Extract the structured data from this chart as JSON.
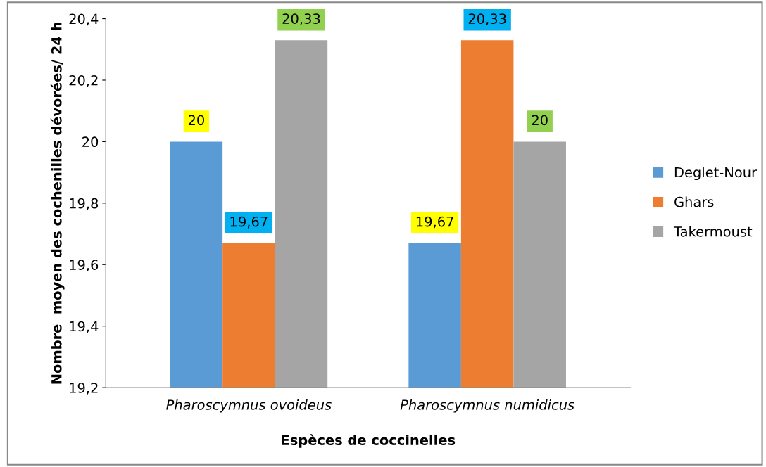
{
  "chart_data": {
    "type": "bar",
    "xlabel": "Espèces de coccinelles",
    "ylabel": "Nombre  moyen des cochenilles dévorées/ 24 h",
    "categories": [
      "Pharoscymnus ovoideus",
      "Pharoscymnus numidicus"
    ],
    "series": [
      {
        "name": "Deglet-Nour",
        "color": "#5b9bd5",
        "values": [
          20,
          19.67
        ],
        "value_labels": [
          "20",
          "19,67"
        ]
      },
      {
        "name": "Ghars",
        "color": "#ed7d31",
        "values": [
          19.67,
          20.33
        ],
        "value_labels": [
          "19,67",
          "20,33"
        ]
      },
      {
        "name": "Takermoust",
        "color": "#a5a5a5",
        "values": [
          20.33,
          20
        ],
        "value_labels": [
          "20,33",
          "20"
        ]
      }
    ],
    "ylim": [
      19.2,
      20.4
    ],
    "yticks": [
      {
        "value": 19.2,
        "label": "19,2"
      },
      {
        "value": 19.4,
        "label": "19,4"
      },
      {
        "value": 19.6,
        "label": "19,6"
      },
      {
        "value": 19.8,
        "label": "19,8"
      },
      {
        "value": 20,
        "label": "20"
      },
      {
        "value": 20.2,
        "label": "20,2"
      },
      {
        "value": 20.4,
        "label": "20,4"
      }
    ],
    "legend": "right",
    "grid": false
  }
}
